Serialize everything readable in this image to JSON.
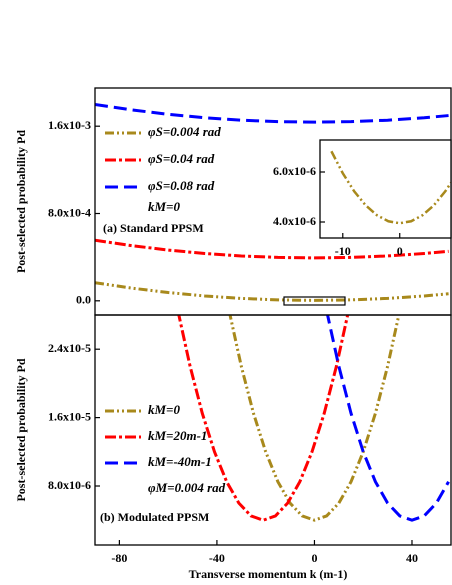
{
  "chart_data": [
    {
      "type": "line",
      "ylabel": "Post-selected probability Pd",
      "xlim": [
        -90,
        56
      ],
      "ylim": [
        -0.00013,
        0.00195
      ],
      "yticks": [
        {
          "value": 0,
          "label": "0.0"
        },
        {
          "value": 0.0008,
          "label": "8.0x10-4"
        },
        {
          "value": 0.0016,
          "label": "1.6x10-3"
        }
      ],
      "x": [
        -90,
        -75,
        -60,
        -45,
        -30,
        -15,
        0,
        15,
        30,
        45,
        55
      ],
      "series": [
        {
          "name": "φS=0.004 rad",
          "color": "#a8891c",
          "dash": "9 3 2 3 2 3",
          "values": [
            0.000166,
            0.0001165,
            7.6e-05,
            4.45e-05,
            2.2e-05,
            8.5e-06,
            4e-06,
            8.5e-06,
            2.2e-05,
            4.45e-05,
            6.45e-05
          ]
        },
        {
          "name": "φS=0.04 rad",
          "color": "#ff0000",
          "dash": "11 3 3 3",
          "values": [
            0.000555,
            0.0005055,
            0.000465,
            0.0004335,
            0.000411,
            0.0003975,
            0.000393,
            0.0003975,
            0.000411,
            0.0004335,
            0.0004535
          ]
        },
        {
          "name": "φS=0.08 rad",
          "color": "#0000ff",
          "dash": "13 6",
          "values": [
            0.001799,
            0.0017495,
            0.001709,
            0.0016775,
            0.001655,
            0.0016415,
            0.001637,
            0.0016415,
            0.001655,
            0.0016775,
            0.0016975
          ]
        }
      ],
      "annotations": [
        "kM=0",
        "(a) Standard PPSM"
      ]
    },
    {
      "type": "line",
      "xlim": [
        -14,
        9
      ],
      "ylim": [
        3.36e-06,
        7.28e-06
      ],
      "xticks": [
        -10,
        0
      ],
      "yticks": [
        {
          "value": 4e-06,
          "label": "4.0x10-6"
        },
        {
          "value": 6e-06,
          "label": "6.0x10-6"
        }
      ],
      "x": [
        -12,
        -10,
        -8,
        -6,
        -4,
        -2,
        0,
        2,
        4,
        6,
        8,
        9
      ],
      "series": [
        {
          "color": "#a8891c",
          "dash": "9 3 2 3 2 3",
          "values": [
            6.83e-06,
            5.95e-06,
            5.23e-06,
            4.67e-06,
            4.27e-06,
            4.03e-06,
            3.95e-06,
            4.03e-06,
            4.27e-06,
            4.67e-06,
            5.23e-06,
            5.57e-06
          ]
        }
      ]
    },
    {
      "type": "line",
      "ylabel": "Post-selected probability Pd",
      "xlabel": "Transverse momentum k (m-1)",
      "xlim": [
        -90,
        56
      ],
      "ylim": [
        1.1e-06,
        2.8e-05
      ],
      "xticks": [
        -80,
        -40,
        0,
        40
      ],
      "yticks": [
        {
          "value": 8e-06,
          "label": "8.0x10-6"
        },
        {
          "value": 1.6e-05,
          "label": "1.6x10-5"
        },
        {
          "value": 2.4e-05,
          "label": "2.4x10-5"
        }
      ],
      "series": [
        {
          "name": "kM=0",
          "color": "#a8891c",
          "dash": "9 3 2 3 2 3",
          "x": [
            -35,
            -30,
            -25,
            -20,
            -15,
            -10,
            -5,
            0,
            5,
            10,
            15,
            20,
            25,
            30,
            35
          ],
          "values": [
            2.85e-05,
            2.2e-05,
            1.65e-05,
            1.2e-05,
            8.5e-06,
            6e-06,
            4.5e-06,
            4e-06,
            4.5e-06,
            6e-06,
            8.5e-06,
            1.2e-05,
            1.65e-05,
            2.2e-05,
            2.85e-05
          ]
        },
        {
          "name": "kM=20m-1",
          "color": "#ff0000",
          "dash": "11 3 3 3",
          "x": [
            -56,
            -51,
            -46,
            -41,
            -36,
            -31,
            -26,
            -21,
            -16,
            -11,
            -6,
            -1,
            4,
            9,
            14
          ],
          "values": [
            2.85e-05,
            2.2e-05,
            1.65e-05,
            1.2e-05,
            8.5e-06,
            6e-06,
            4.5e-06,
            4e-06,
            4.5e-06,
            6e-06,
            8.5e-06,
            1.2e-05,
            1.65e-05,
            2.2e-05,
            2.85e-05
          ]
        },
        {
          "name": "kM=-40m-1",
          "color": "#0000ff",
          "dash": "13 6",
          "x": [
            5,
            10,
            15,
            20,
            25,
            30,
            35,
            40,
            45,
            50,
            55
          ],
          "values": [
            2.85e-05,
            2.2e-05,
            1.65e-05,
            1.2e-05,
            8.5e-06,
            6e-06,
            4.5e-06,
            4e-06,
            4.5e-06,
            6e-06,
            8.5e-06
          ]
        }
      ],
      "annotations": [
        "φM=0.004 rad",
        "(b) Modulated PPSM"
      ]
    }
  ]
}
